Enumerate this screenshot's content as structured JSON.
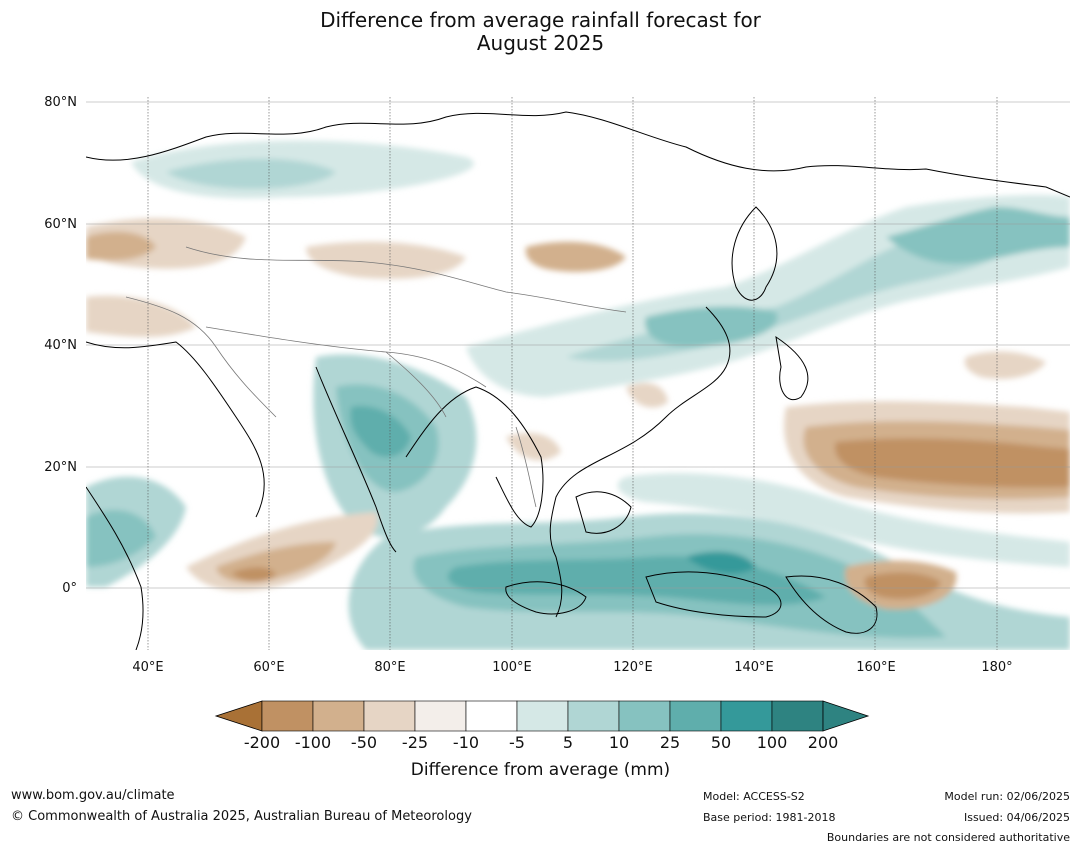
{
  "title_line1": "Difference from average rainfall forecast for",
  "title_line2": "August 2025",
  "lat_labels": [
    "80°N",
    "60°N",
    "40°N",
    "20°N",
    "0°"
  ],
  "lon_labels": [
    "40°E",
    "60°E",
    "80°E",
    "100°E",
    "120°E",
    "140°E",
    "160°E",
    "180°"
  ],
  "colorbar": {
    "ticks": [
      "-200",
      "-100",
      "-50",
      "-25",
      "-10",
      "-5",
      "5",
      "10",
      "25",
      "50",
      "100",
      "200"
    ],
    "colors": [
      "#a97136",
      "#c09163",
      "#d2b08d",
      "#e6d5c5",
      "#f3eeea",
      "#ffffff",
      "#d5e8e6",
      "#b0d6d4",
      "#86c2c0",
      "#5faeac",
      "#34999a",
      "#2e8381"
    ],
    "label": "Difference from average (mm)"
  },
  "footer": {
    "website": "www.bom.gov.au/climate",
    "copyright": "© Commonwealth of Australia 2025, Australian Bureau of Meteorology",
    "model": "Model: ACCESS-S2",
    "base_period": "Base period: 1981-2018",
    "model_run": "Model run: 02/06/2025",
    "issued": "Issued: 04/06/2025",
    "boundaries_note": "Boundaries are not considered authoritative"
  }
}
